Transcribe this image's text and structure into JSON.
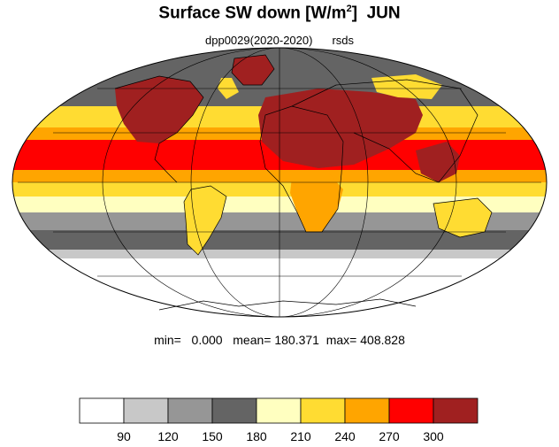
{
  "title": {
    "main": "Surface SW down [W/m",
    "sup": "2",
    "close": "]",
    "month": "JUN"
  },
  "subtitle": {
    "run": "dpp0029(2020-2020)",
    "variable": "rsds"
  },
  "stats": {
    "min_label": "min=",
    "min": "0.000",
    "mean_label": "mean=",
    "mean": "180.371",
    "max_label": "max=",
    "max": "408.828"
  },
  "colorbar": {
    "bins": [
      {
        "color": "#ffffff"
      },
      {
        "color": "#c8c8c8"
      },
      {
        "color": "#969696"
      },
      {
        "color": "#646464"
      },
      {
        "color": "#ffffc0"
      },
      {
        "color": "#ffdc32"
      },
      {
        "color": "#ffa500"
      },
      {
        "color": "#ff0000"
      },
      {
        "color": "#a02020"
      }
    ],
    "ticks": [
      "90",
      "120",
      "150",
      "180",
      "210",
      "240",
      "270",
      "300"
    ]
  },
  "map": {
    "projection": "Mollweide",
    "field_note": "latitude bands of shortwave radiation, Antarctica white, subtropical land maxima dark red",
    "line_color": "#000000"
  }
}
